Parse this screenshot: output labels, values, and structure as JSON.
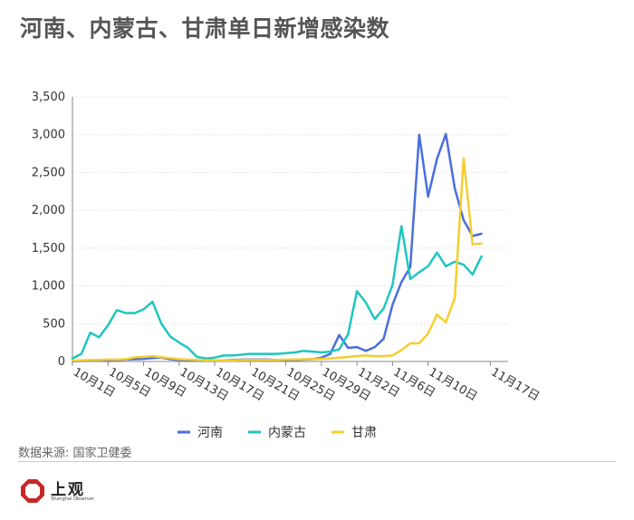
{
  "title": "河南、内蒙古、甘肃单日新增感染数",
  "source": "数据来源: 国家卫健委",
  "logo": {
    "text": "上观",
    "subtext": "Shanghai Observer",
    "color": "#c62828"
  },
  "chart_data": {
    "type": "line",
    "title": "河南、内蒙古、甘肃单日新增感染数",
    "ylim": [
      0,
      3500
    ],
    "yticks": [
      0,
      500,
      1000,
      1500,
      2000,
      2500,
      3000,
      3500
    ],
    "ytick_labels": [
      "0",
      "500",
      "1,000",
      "1,500",
      "2,000",
      "2,500",
      "3,000",
      "3,500"
    ],
    "x_range": [
      1,
      50
    ],
    "xticks": [
      1,
      5,
      9,
      13,
      17,
      21,
      25,
      29,
      33,
      37,
      41,
      48
    ],
    "xtick_labels": [
      "10月1日",
      "10月5日",
      "10月9日",
      "10月13日",
      "10月17日",
      "10月21日",
      "10月25日",
      "10月29日",
      "11月2日",
      "11月6日",
      "11月10日",
      "11月17日"
    ],
    "x": [
      1,
      2,
      3,
      4,
      5,
      6,
      7,
      8,
      9,
      10,
      11,
      12,
      13,
      14,
      15,
      16,
      17,
      18,
      19,
      20,
      21,
      22,
      23,
      24,
      25,
      26,
      27,
      28,
      29,
      30,
      31,
      32,
      33,
      34,
      35,
      36,
      37,
      38,
      39,
      40,
      41,
      42,
      43,
      44,
      45,
      46,
      47
    ],
    "series": [
      {
        "name": "河南",
        "color": "#4a6fdc",
        "values": [
          5,
          8,
          10,
          15,
          12,
          20,
          25,
          30,
          35,
          45,
          50,
          30,
          20,
          15,
          10,
          10,
          12,
          15,
          20,
          25,
          25,
          25,
          25,
          20,
          20,
          20,
          25,
          30,
          50,
          100,
          350,
          180,
          190,
          140,
          190,
          300,
          750,
          1050,
          1250,
          3000,
          2180,
          2680,
          3010,
          2290,
          1870,
          1660,
          1690
        ]
      },
      {
        "name": "内蒙古",
        "color": "#1fc6c0",
        "values": [
          40,
          100,
          380,
          320,
          480,
          680,
          640,
          640,
          690,
          790,
          500,
          330,
          250,
          180,
          60,
          40,
          50,
          80,
          80,
          90,
          100,
          100,
          100,
          100,
          110,
          120,
          140,
          130,
          120,
          130,
          160,
          360,
          930,
          780,
          560,
          700,
          1010,
          1790,
          1090,
          1180,
          1260,
          1440,
          1260,
          1320,
          1280,
          1150,
          1390
        ]
      },
      {
        "name": "甘肃",
        "color": "#f5ce2f",
        "values": [
          10,
          15,
          20,
          20,
          25,
          25,
          30,
          55,
          60,
          70,
          55,
          45,
          30,
          25,
          20,
          15,
          15,
          15,
          15,
          20,
          20,
          20,
          20,
          20,
          25,
          25,
          30,
          30,
          35,
          40,
          50,
          60,
          70,
          80,
          70,
          70,
          80,
          150,
          240,
          240,
          370,
          620,
          520,
          840,
          2690,
          1550,
          1560
        ]
      }
    ],
    "legend_position": "bottom-center"
  }
}
